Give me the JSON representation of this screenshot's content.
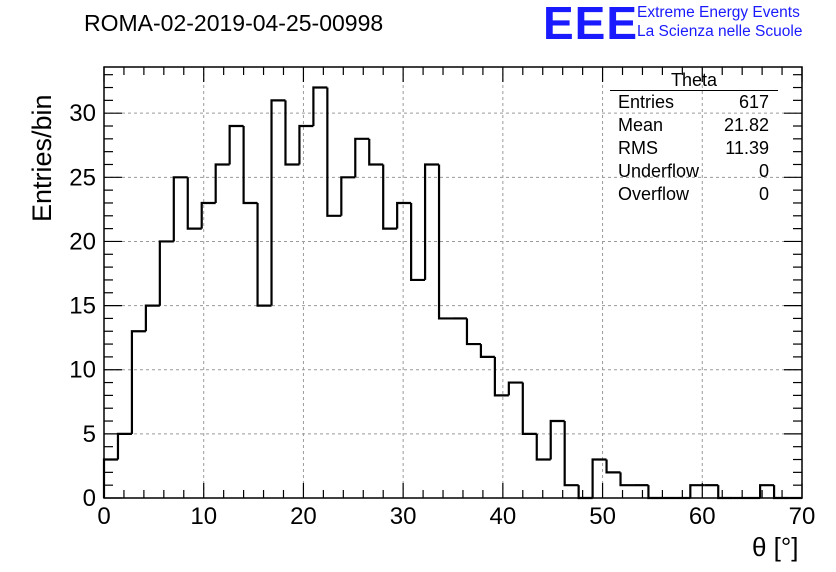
{
  "header": {
    "run_title": "ROMA-02-2019-04-25-00998",
    "logo": "EEE",
    "logo_line1": "Extreme Energy Events",
    "logo_line2": "La Scienza nelle Scuole",
    "logo_color": "#1a1aff"
  },
  "stats_box": {
    "title": "Theta",
    "rows": [
      {
        "label": "Entries",
        "value": "617"
      },
      {
        "label": "Mean",
        "value": "21.82"
      },
      {
        "label": "RMS",
        "value": "11.39"
      },
      {
        "label": "Underflow",
        "value": "0"
      },
      {
        "label": "Overflow",
        "value": "0"
      }
    ]
  },
  "chart_data": {
    "type": "histogram",
    "xlabel": "θ [°]",
    "ylabel": "Entries/bin",
    "xlim": [
      0,
      70
    ],
    "ylim": [
      0,
      33.6
    ],
    "xticks": [
      0,
      10,
      20,
      30,
      40,
      50,
      60,
      70
    ],
    "yticks": [
      0,
      5,
      10,
      15,
      20,
      25,
      30
    ],
    "grid": true,
    "bin_edges_start": 0,
    "bin_width": 1.4,
    "values": [
      3,
      5,
      13,
      15,
      20,
      25,
      21,
      23,
      26,
      29,
      23,
      15,
      31,
      26,
      29,
      32,
      22,
      25,
      28,
      26,
      21,
      23,
      17,
      26,
      14,
      14,
      12,
      11,
      8,
      9,
      5,
      3,
      6,
      1,
      0,
      3,
      2,
      1,
      1,
      0,
      0,
      0,
      1,
      1,
      0,
      0,
      0,
      1,
      0,
      0
    ]
  }
}
